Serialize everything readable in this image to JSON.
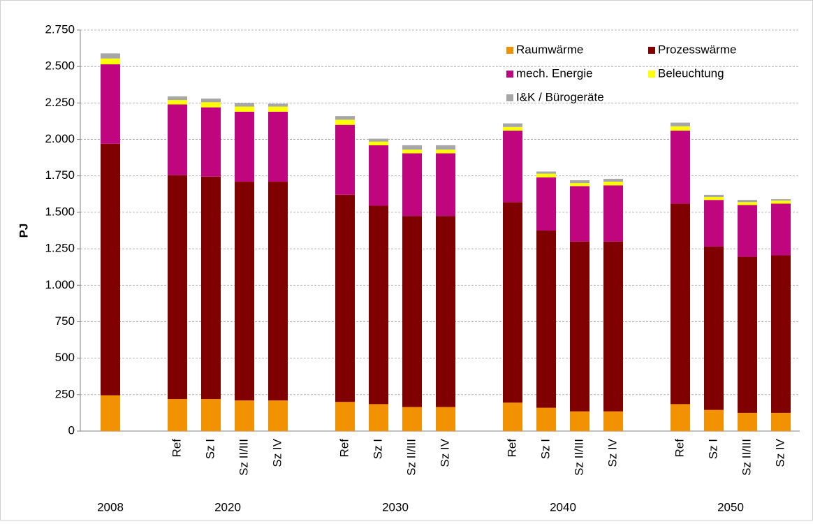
{
  "chart_data": {
    "type": "stacked_bar",
    "y_label": "PJ",
    "groups": [
      {
        "name": "2008",
        "categories": [
          null
        ]
      },
      {
        "name": "2020",
        "categories": [
          "Ref",
          "Sz I",
          "Sz II/III",
          "Sz IV"
        ]
      },
      {
        "name": "2030",
        "categories": [
          "Ref",
          "Sz I",
          "Sz II/III",
          "Sz IV"
        ]
      },
      {
        "name": "2040",
        "categories": [
          "Ref",
          "Sz I",
          "Sz II/III",
          "Sz IV"
        ]
      },
      {
        "name": "2050",
        "categories": [
          "Ref",
          "Sz I",
          "Sz II/III",
          "Sz IV"
        ]
      }
    ],
    "series": [
      {
        "name": "Raumwärme",
        "color": "#f39200",
        "values": [
          245,
          220,
          220,
          210,
          210,
          200,
          185,
          165,
          165,
          195,
          160,
          135,
          135,
          185,
          145,
          125,
          125
        ]
      },
      {
        "name": "Prozesswärme",
        "color": "#800000",
        "values": [
          1725,
          1535,
          1525,
          1500,
          1500,
          1420,
          1360,
          1310,
          1310,
          1375,
          1215,
          1165,
          1165,
          1375,
          1120,
          1070,
          1080
        ]
      },
      {
        "name": "mech. Energie",
        "color": "#c0067f",
        "values": [
          545,
          485,
          475,
          480,
          480,
          480,
          415,
          430,
          430,
          490,
          365,
          380,
          385,
          500,
          320,
          355,
          355
        ]
      },
      {
        "name": "Beleuchtung",
        "color": "#ffff00",
        "values": [
          40,
          30,
          35,
          35,
          35,
          35,
          25,
          25,
          25,
          25,
          25,
          20,
          25,
          30,
          20,
          20,
          20
        ]
      },
      {
        "name": "I&K / Bürogeräte",
        "color": "#a6a6a6",
        "values": [
          35,
          25,
          25,
          25,
          20,
          25,
          20,
          30,
          30,
          25,
          15,
          20,
          20,
          25,
          15,
          15,
          10
        ]
      }
    ],
    "ylim": [
      0,
      2750
    ],
    "yticks": [
      0,
      250,
      500,
      750,
      {
        "value": 1000,
        "label": "1.000"
      },
      {
        "value": 1250,
        "label": "1.250"
      },
      {
        "value": 1500,
        "label": "1.500"
      },
      {
        "value": 1750,
        "label": "1.750"
      },
      {
        "value": 2000,
        "label": "2.000"
      },
      {
        "value": 2250,
        "label": "2.250"
      },
      {
        "value": 2500,
        "label": "2.500"
      },
      {
        "value": 2750,
        "label": "2.750"
      }
    ],
    "grid": true,
    "legend": "top-right"
  }
}
